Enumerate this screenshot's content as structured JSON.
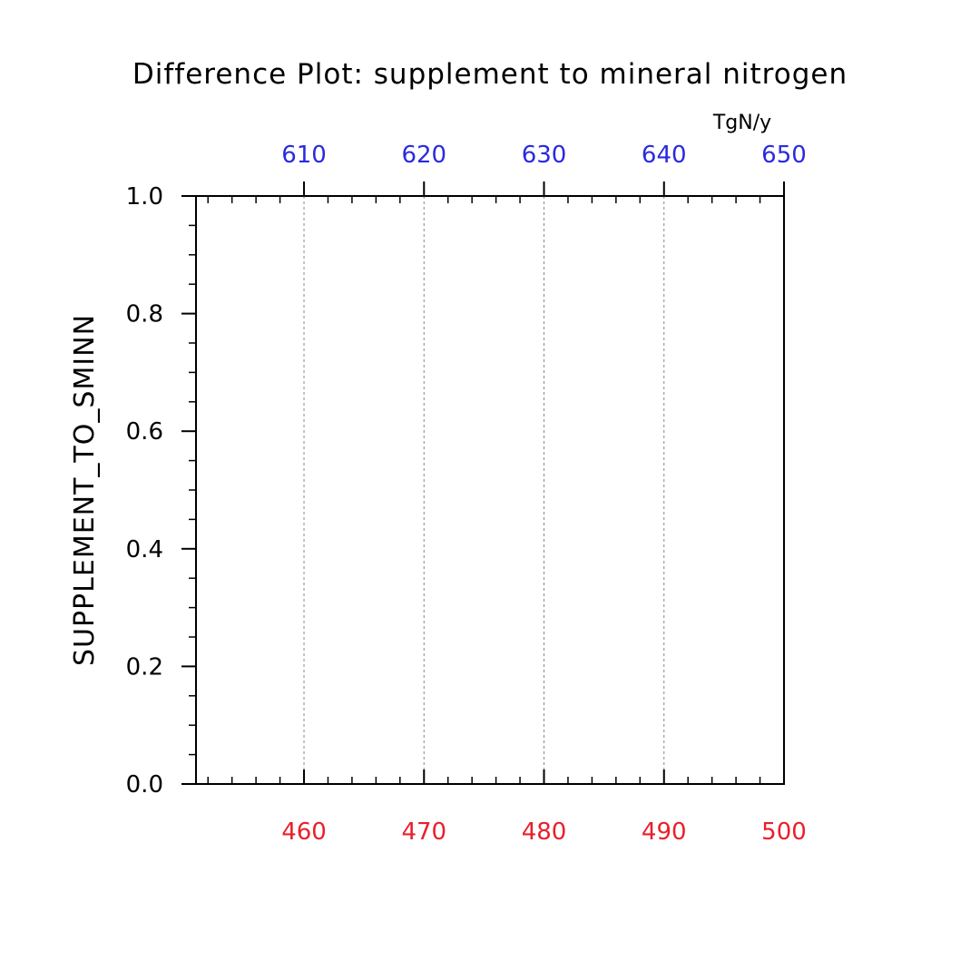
{
  "chart_data": {
    "type": "line",
    "title": "Difference Plot: supplement to mineral nitrogen",
    "ylabel": "SUPPLEMENT_TO_SMINN",
    "xlabel": "",
    "bottom_axis": {
      "range": [
        451,
        500
      ],
      "ticks": [
        460,
        470,
        480,
        490,
        500
      ],
      "tick_labels": [
        "460",
        "470",
        "480",
        "490",
        "500"
      ],
      "color": "#e8202a"
    },
    "top_axis": {
      "range": [
        601,
        650
      ],
      "ticks": [
        610,
        620,
        630,
        640,
        650
      ],
      "tick_labels": [
        "610",
        "620",
        "630",
        "640",
        "650"
      ],
      "unit_label": "TgN/y",
      "color": "#2a2ae0"
    },
    "ylim": [
      0,
      1
    ],
    "y_ticks": [
      0,
      0.2,
      0.4,
      0.6,
      0.8,
      1.0
    ],
    "y_tick_labels": [
      "0.0",
      "0.2",
      "0.4",
      "0.6",
      "0.8",
      "1.0"
    ],
    "grid": "vertical dashed",
    "series": []
  }
}
